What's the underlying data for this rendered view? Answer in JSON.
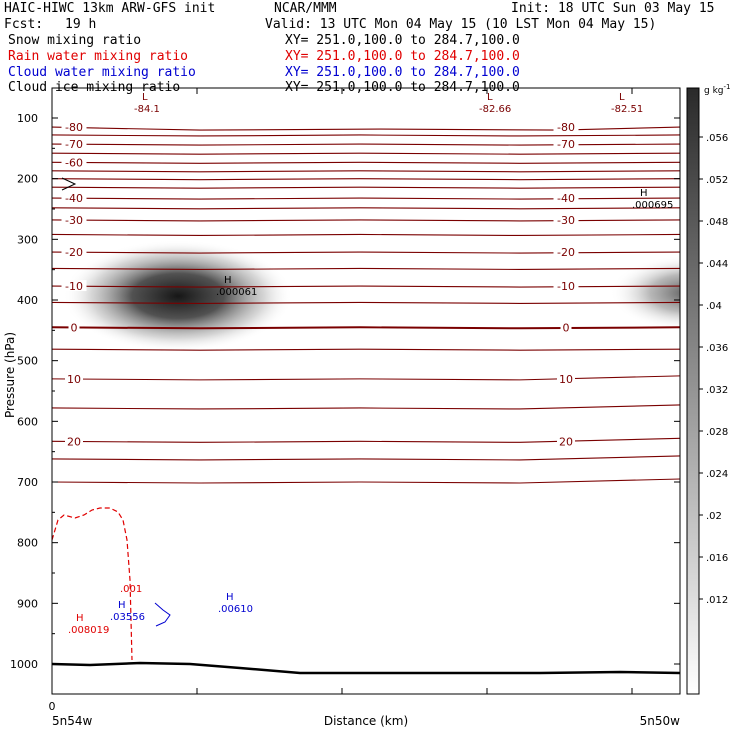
{
  "header": {
    "title": "HAIC-HIWC 13km ARW-GFS init",
    "center": "NCAR/MMM",
    "init": "Init: 18 UTC Sun 03 May 15",
    "fcst_label": "Fcst:",
    "fcst_value": "19 h",
    "valid": "Valid: 13 UTC Mon 04 May 15 (10 LST Mon 04 May 15)",
    "fields": [
      {
        "name": "Snow mixing ratio",
        "xy": "XY= 251.0,100.0 to 284.7,100.0",
        "color": "#000000"
      },
      {
        "name": "Rain water mixing ratio",
        "xy": "XY= 251.0,100.0 to 284.7,100.0",
        "color": "#e00000"
      },
      {
        "name": "Cloud water mixing ratio",
        "xy": "XY= 251.0,100.0 to 284.7,100.0",
        "color": "#0000d0"
      },
      {
        "name": "Cloud ice mixing ratio",
        "xy": "XY= 251.0,100.0 to 284.7,100.0",
        "color": "#000000"
      }
    ]
  },
  "chart_data": {
    "type": "heatmap",
    "ylabel": "Pressure (hPa)",
    "xlabel": "Distance (km)",
    "x_left_label": "5n54w",
    "x_right_label": "5n50w",
    "x_origin_label": "0",
    "yticks": [
      100,
      200,
      300,
      400,
      500,
      600,
      700,
      800,
      900,
      1000
    ],
    "ylim": [
      50,
      1040
    ],
    "colorbar": {
      "unit": "g kg",
      "unit_exp": "-1",
      "ticks": [
        ".056",
        ".052",
        ".048",
        ".044",
        ".04",
        ".036",
        ".032",
        ".028",
        ".024",
        ".02",
        ".016",
        ".012"
      ]
    },
    "temperature_contours": {
      "color": "#7a0000",
      "levels": [
        -80,
        -75,
        -70,
        -65,
        -60,
        -55,
        -50,
        -45,
        -40,
        -35,
        -30,
        -25,
        -20,
        -15,
        -10,
        -5,
        0,
        5,
        10,
        15,
        20,
        25,
        30
      ],
      "labels": [
        {
          "text": "-80",
          "pos": "left"
        },
        {
          "text": "-80",
          "pos": "right"
        },
        {
          "text": "-70",
          "pos": "left"
        },
        {
          "text": "-70",
          "pos": "right"
        },
        {
          "text": "-60",
          "pos": "left"
        },
        {
          "text": "-40",
          "pos": "left"
        },
        {
          "text": "-40",
          "pos": "right"
        },
        {
          "text": "-30",
          "pos": "left"
        },
        {
          "text": "-30",
          "pos": "right"
        },
        {
          "text": "-20",
          "pos": "left"
        },
        {
          "text": "-20",
          "pos": "right"
        },
        {
          "text": "-10",
          "pos": "left"
        },
        {
          "text": "-10",
          "pos": "right"
        },
        {
          "text": "0",
          "pos": "left"
        },
        {
          "text": "0",
          "pos": "right"
        },
        {
          "text": "10",
          "pos": "left"
        },
        {
          "text": "10",
          "pos": "right"
        },
        {
          "text": "20",
          "pos": "left"
        },
        {
          "text": "20",
          "pos": "right"
        }
      ]
    },
    "extrema": [
      {
        "kind": "L",
        "value": "-84.1",
        "color": "#7a0000"
      },
      {
        "kind": "L",
        "value": "-82.66",
        "color": "#7a0000"
      },
      {
        "kind": "L",
        "value": "-82.51",
        "color": "#7a0000"
      },
      {
        "kind": "H",
        "value": ".000695",
        "color": "#000000"
      },
      {
        "kind": "H",
        "value": ".000061",
        "color": "#000000"
      },
      {
        "kind": "H",
        "value": ".03556",
        "color": "#0000d0"
      },
      {
        "kind": "H",
        "value": ".00610",
        "color": "#0000d0"
      },
      {
        "kind": "H",
        "value": ".008019",
        "color": "#e00000"
      }
    ],
    "rain_contour_label": ".001",
    "cloud_ice_maxima_g_per_kg": [
      0.056,
      0.044
    ],
    "cloud_ice_center_pressure_hPa": 390
  }
}
